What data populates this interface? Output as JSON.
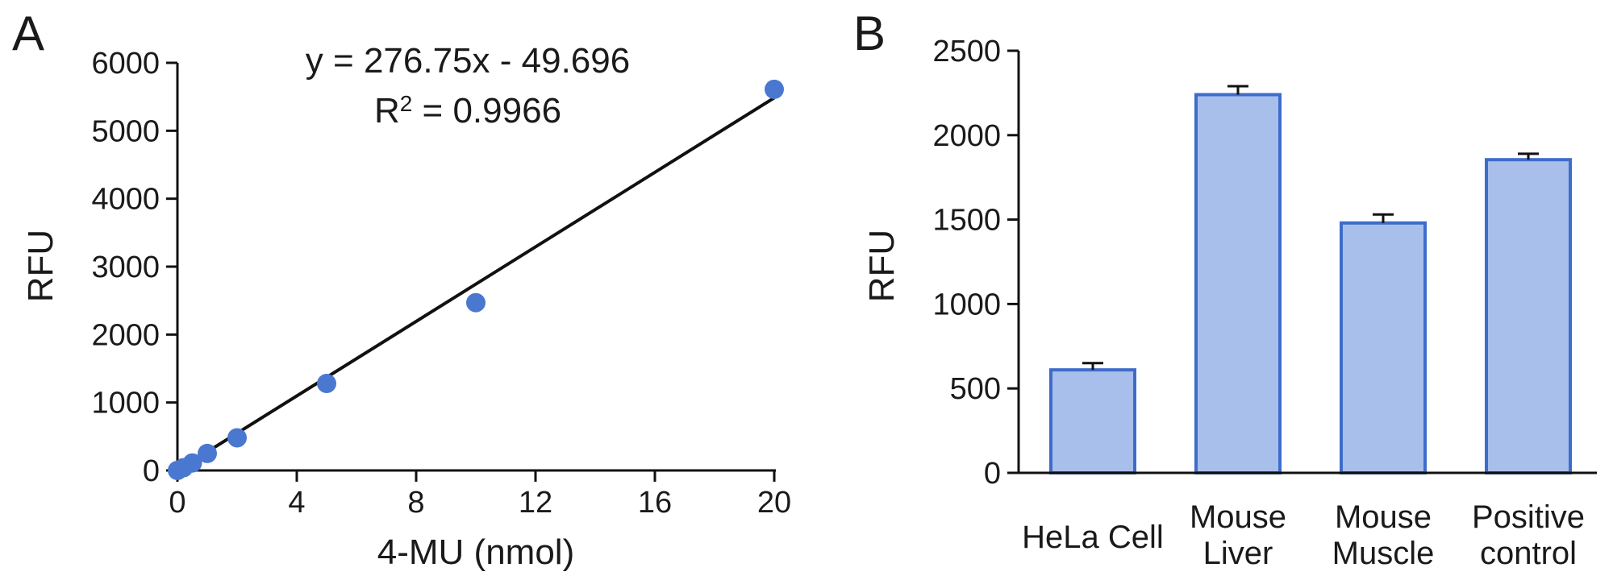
{
  "chart_data": [
    {
      "panel": "A",
      "type": "scatter",
      "xlabel": "4-MU (nmol)",
      "ylabel": "RFU",
      "xlim": [
        0,
        20
      ],
      "ylim": [
        0,
        6000
      ],
      "x_ticks": [
        0,
        4,
        8,
        12,
        16,
        20
      ],
      "y_ticks": [
        0,
        1000,
        2000,
        3000,
        4000,
        5000,
        6000
      ],
      "series": [
        {
          "x": [
            0,
            0.2,
            0.5,
            1,
            2,
            5,
            10,
            20
          ],
          "y": [
            0,
            40,
            110,
            250,
            480,
            1280,
            2470,
            5610
          ]
        }
      ],
      "fit": {
        "slope": 276.75,
        "intercept": -49.696
      },
      "annotations": {
        "equation": "y = 276.75x - 49.696",
        "r2_label": "R",
        "r2_sup": "2",
        "r2_value": " = 0.9966"
      },
      "colors": {
        "points": "#4a78d0",
        "line": "#111111"
      }
    },
    {
      "panel": "B",
      "type": "bar",
      "ylabel": "RFU",
      "ylim": [
        0,
        2500
      ],
      "y_ticks": [
        0,
        500,
        1000,
        1500,
        2000,
        2500
      ],
      "categories": [
        [
          "HeLa Cell"
        ],
        [
          "Mouse",
          "Liver"
        ],
        [
          "Mouse",
          "Muscle"
        ],
        [
          "Positive",
          "control"
        ]
      ],
      "values": [
        610,
        2240,
        1480,
        1855
      ],
      "errors": [
        40,
        50,
        50,
        35
      ],
      "colors": {
        "fill": "#a8bfec",
        "stroke": "#3f6cc9"
      }
    }
  ]
}
